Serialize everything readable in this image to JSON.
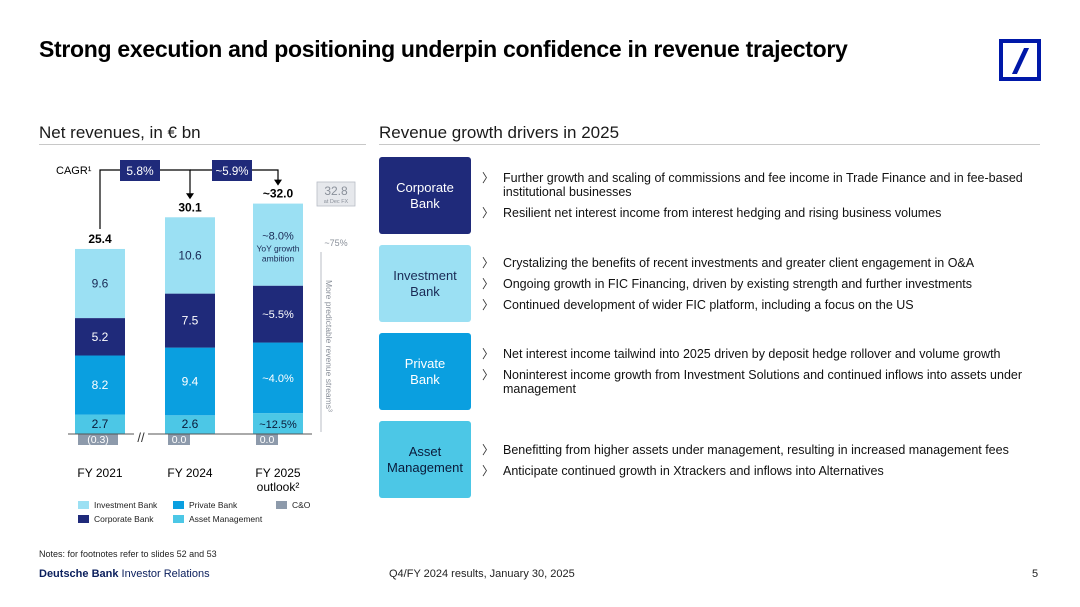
{
  "header": {
    "title": "Strong execution and positioning underpin confidence in revenue trajectory"
  },
  "brand": {
    "logo_icon": "deutsche-bank-logo",
    "color": "#0018a8"
  },
  "left": {
    "section_title": "Net revenues, in € bn"
  },
  "right": {
    "section_title": "Revenue growth drivers in 2025"
  },
  "chart_data": {
    "type": "bar",
    "stacked": true,
    "categories": [
      "FY 2021",
      "FY 2024",
      "FY 2025 outlook²"
    ],
    "x_tick_labels": [
      "FY 2021",
      "FY 2024",
      "FY 2025",
      "outlook²"
    ],
    "series": [
      {
        "name": "C&O",
        "values": [
          -0.3,
          0.0,
          0.0
        ],
        "labels": [
          "(0.3)",
          "0.0",
          "0.0"
        ],
        "color": "#8d9aab"
      },
      {
        "name": "Asset Management",
        "values": [
          2.7,
          2.6,
          2.9
        ],
        "labels": [
          "2.7",
          "2.6",
          "~12.5%"
        ],
        "color": "#4cc7e6"
      },
      {
        "name": "Private Bank",
        "values": [
          8.2,
          9.4,
          9.8
        ],
        "labels": [
          "8.2",
          "9.4",
          "~4.0%"
        ],
        "color": "#0a9fe0"
      },
      {
        "name": "Corporate Bank",
        "values": [
          5.2,
          7.5,
          7.9
        ],
        "labels": [
          "5.2",
          "7.5",
          "~5.5%"
        ],
        "color": "#1f2a7a"
      },
      {
        "name": "Investment Bank",
        "values": [
          9.6,
          10.6,
          11.4
        ],
        "labels": [
          "9.6",
          "10.6",
          "~8.0%"
        ],
        "color": "#9be0f3"
      }
    ],
    "totals": [
      "25.4",
      "30.1",
      "~32.0"
    ],
    "cagr_label": "CAGR¹",
    "cagr_values": [
      "5.8%",
      "~5.9%"
    ],
    "fx_value": "32.8",
    "fx_note": "at Dec FX",
    "ib_growth_note": [
      "YoY growth",
      "ambition"
    ],
    "predictable_share": "~75%",
    "predictable_label": "More predictable revenue streams³",
    "axis_break": "//",
    "legend_order": [
      "Investment Bank",
      "Private Bank",
      "C&O",
      "Corporate Bank",
      "Asset Management"
    ],
    "legend_placement": "bottom",
    "grid": false
  },
  "drivers": [
    {
      "name": "Corporate\nBank",
      "bg": "#1f2a7a",
      "fg": "#ffffff",
      "bullets": [
        "Further growth and scaling of commissions and fee income in Trade Finance and in fee-based institutional businesses",
        "Resilient net interest income from interest hedging and rising business volumes"
      ]
    },
    {
      "name": "Investment\nBank",
      "bg": "#9be0f3",
      "fg": "#1a2a55",
      "bullets": [
        "Crystalizing the benefits of recent investments and greater client engagement in O&A",
        "Ongoing growth in FIC Financing, driven by existing strength and further investments",
        "Continued development of wider FIC platform, including a focus on the US"
      ]
    },
    {
      "name": "Private\nBank",
      "bg": "#0a9fe0",
      "fg": "#ffffff",
      "bullets": [
        "Net interest income tailwind into 2025 driven by deposit hedge rollover and volume growth",
        "Noninterest income growth from Investment Solutions and continued inflows into assets under management"
      ]
    },
    {
      "name": "Asset\nManagement",
      "bg": "#4cc7e6",
      "fg": "#0a1a3a",
      "bullets": [
        "Benefitting from higher assets under management, resulting in increased management fees",
        "Anticipate continued growth in Xtrackers and inflows into Alternatives"
      ]
    }
  ],
  "bullet_icon": "chevron-right-icon",
  "bullet_glyph": "〉",
  "footer": {
    "notes": "Notes: for footnotes refer to slides 52 and 53",
    "brand_bold": "Deutsche Bank",
    "brand_rest": " Investor Relations",
    "center": "Q4/FY 2024 results, January 30, 2025",
    "page": "5"
  }
}
